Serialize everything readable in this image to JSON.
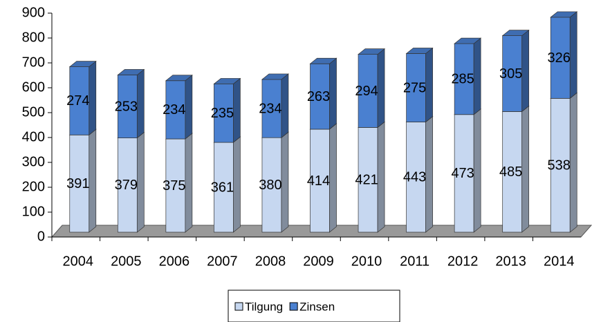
{
  "chart_data": {
    "type": "bar3d_stacked",
    "categories": [
      "2004",
      "2005",
      "2006",
      "2007",
      "2008",
      "2009",
      "2010",
      "2011",
      "2012",
      "2013",
      "2014"
    ],
    "series": [
      {
        "name": "Tilgung",
        "color": "#c6d7f0",
        "values": [
          391,
          379,
          375,
          361,
          380,
          414,
          421,
          443,
          473,
          485,
          538
        ]
      },
      {
        "name": "Zinsen",
        "color": "#4a80d0",
        "values": [
          274,
          253,
          234,
          235,
          234,
          263,
          294,
          275,
          285,
          305,
          326
        ]
      }
    ],
    "ylim": [
      0,
      900
    ],
    "yticks": [
      0,
      100,
      200,
      300,
      400,
      500,
      600,
      700,
      800,
      900
    ],
    "grid": false,
    "legend": "bottom"
  }
}
